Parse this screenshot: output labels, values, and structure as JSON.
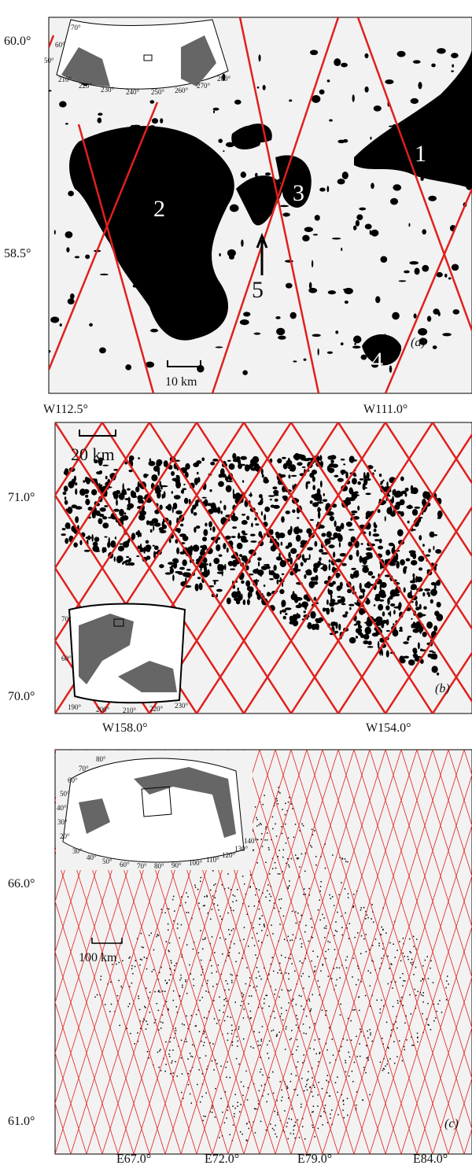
{
  "panels": [
    {
      "lat_labels": [
        "60.0°",
        "58.5°"
      ],
      "lon_labels": [
        "W112.5°",
        "W111.0°"
      ],
      "scale": "10 km",
      "label": "(a)",
      "lake_labels": [
        "1",
        "2",
        "3",
        "4",
        "5"
      ],
      "inset_labels": [
        "70°",
        "60°",
        "50°",
        "210°",
        "220°",
        "230°",
        "240°",
        "250°",
        "260°",
        "270°",
        "280°"
      ]
    },
    {
      "lat_labels": [
        "71.0°",
        "70.0°"
      ],
      "lon_labels": [
        "W158.0°",
        "W154.0°"
      ],
      "scale": "20 km",
      "label": "(b)",
      "inset_labels": [
        "70°",
        "60°",
        "190°",
        "200°",
        "210°",
        "220°",
        "230°"
      ]
    },
    {
      "lat_labels": [
        "66.0°",
        "61.0°"
      ],
      "lon_labels": [
        "E67.0°",
        "E72.0°",
        "E79.0°",
        "E84.0°"
      ],
      "scale": "100 km",
      "label": "(c)",
      "inset_labels": [
        "80°",
        "70°",
        "60°",
        "50°",
        "40°",
        "30°",
        "20°",
        "30°",
        "40°",
        "50°",
        "60°",
        "70°",
        "80°",
        "90°",
        "100°",
        "110°",
        "120°",
        "130°",
        "140°"
      ]
    }
  ]
}
